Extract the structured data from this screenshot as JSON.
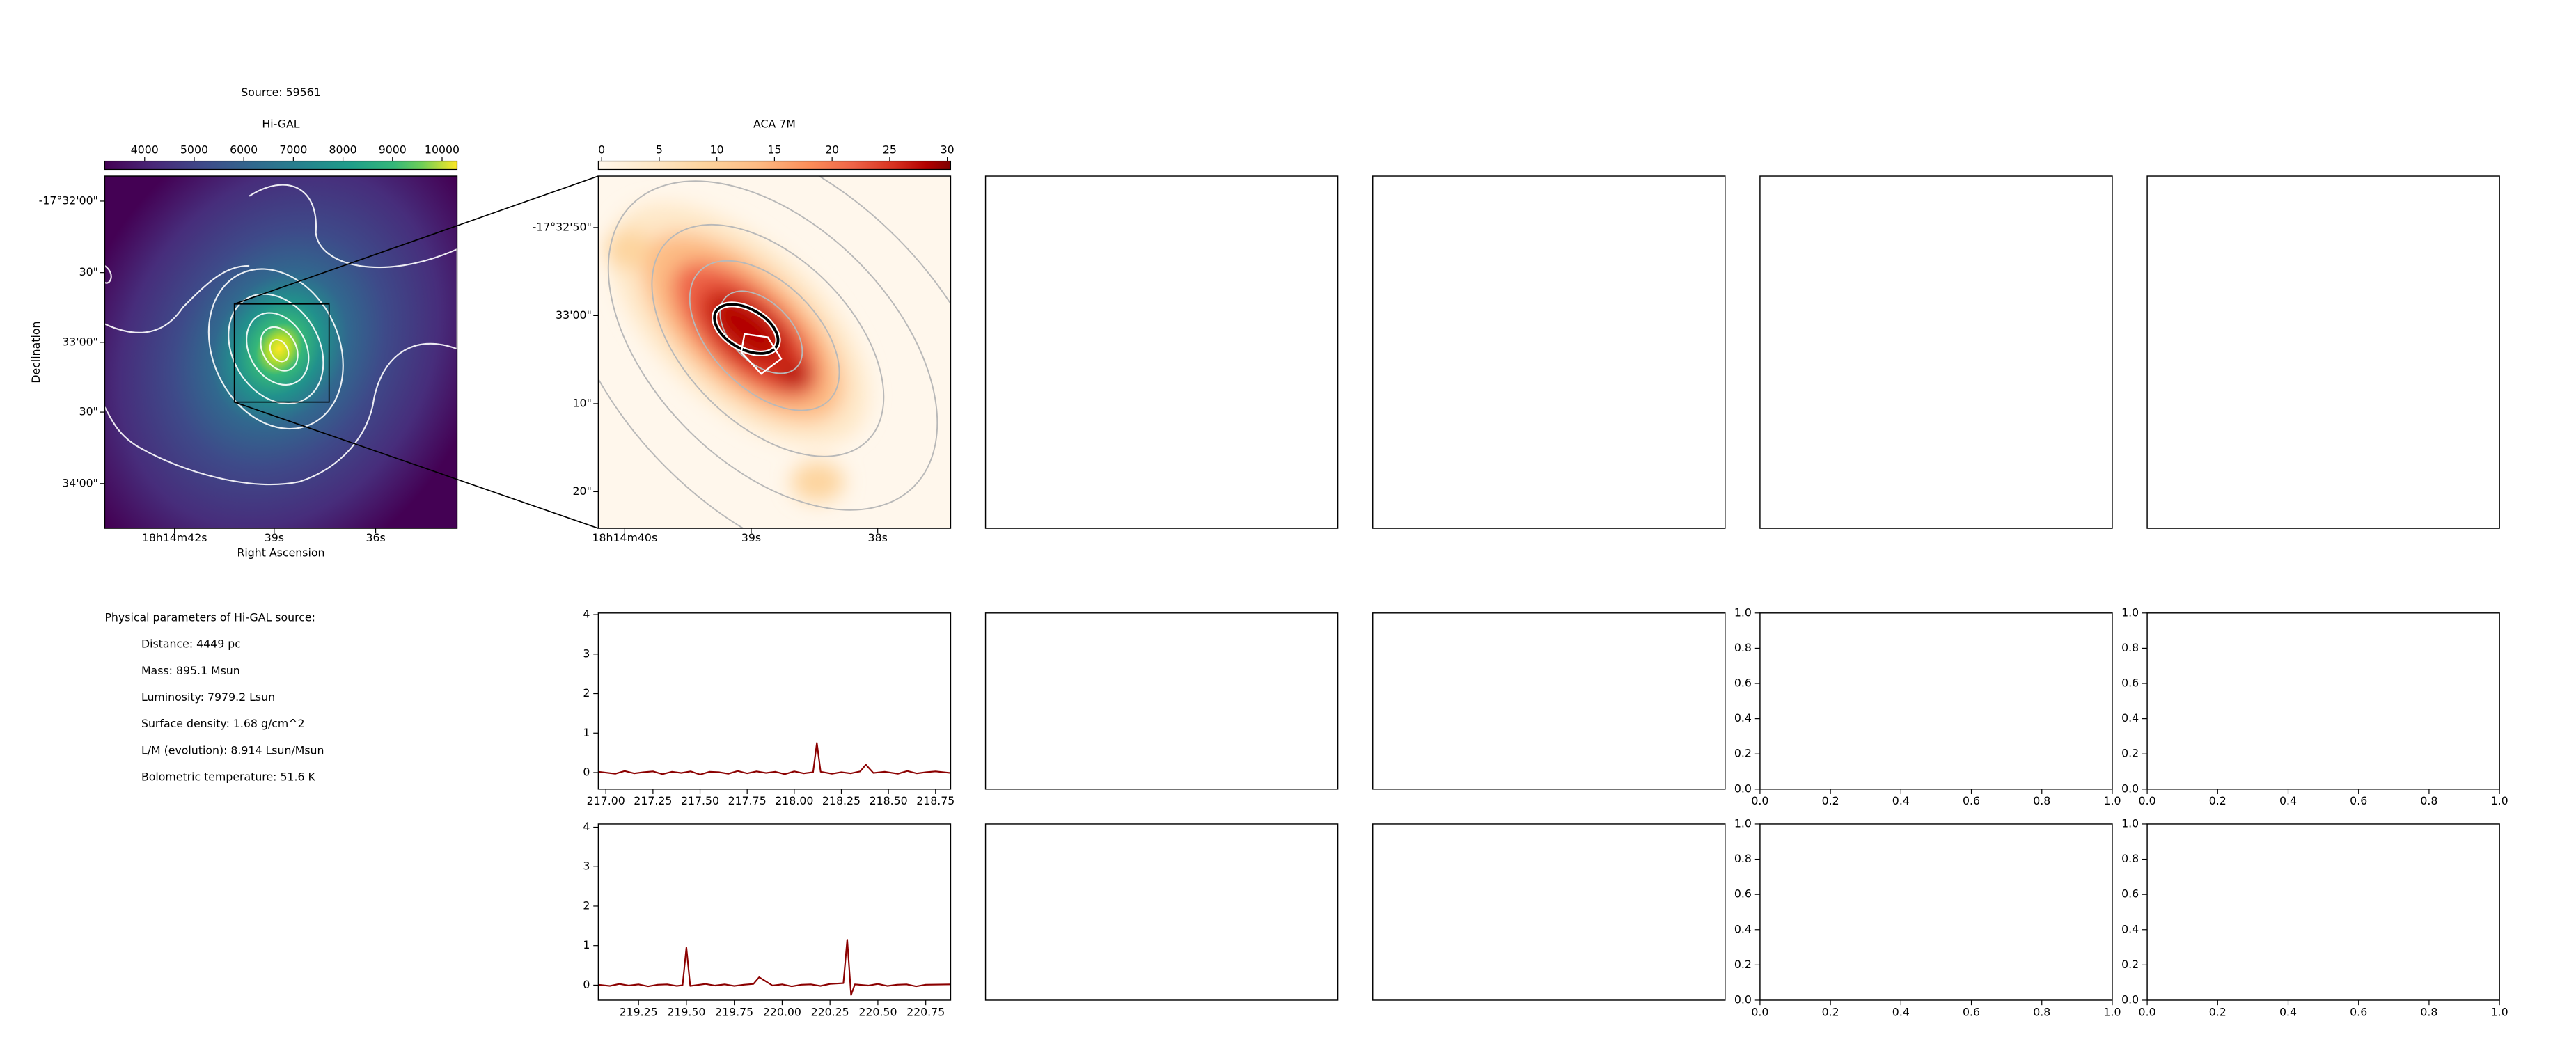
{
  "title": "Source: 59561",
  "images": [
    {
      "title": "Hi-GAL",
      "colorbar": {
        "lim": [
          3195,
          10302
        ],
        "ticks": [
          4000,
          5000,
          6000,
          7000,
          8000,
          9000,
          10000
        ]
      },
      "ra_ticks": [
        "18h14m42s",
        "39s",
        "36s"
      ],
      "dec_ticks": [
        "-17°32'00\"",
        "30\"",
        "33'00\"",
        "30\"",
        "34'00\""
      ],
      "xlabel": "Right Ascension",
      "ylabel": "Declination"
    },
    {
      "title": "ACA 7M",
      "colorbar": {
        "lim": [
          -0.29,
          30.29
        ],
        "ticks": [
          0,
          5,
          10,
          15,
          20,
          25,
          30
        ]
      },
      "ra_ticks": [
        "18h14m40s",
        "39s",
        "38s"
      ],
      "dec_ticks": [
        "-17°32'50\"",
        "33'00\"",
        "10\"",
        "20\""
      ]
    }
  ],
  "parameters": {
    "heading": "Physical parameters of Hi-GAL source:",
    "lines": [
      "Distance: 4449 pc",
      "Mass: 895.1 Msun",
      "Luminosity: 7979.2 Lsun",
      "Surface density: 1.68 g/cm^2",
      "L/M (evolution): 8.914 Lsun/Msun",
      "Bolometric temperature: 51.6 K"
    ]
  },
  "chart_data": [
    {
      "type": "line",
      "color": "#8b0000",
      "x": [
        216.96,
        217.05,
        217.1,
        217.15,
        217.2,
        217.25,
        217.3,
        217.35,
        217.4,
        217.45,
        217.5,
        217.55,
        217.6,
        217.65,
        217.7,
        217.75,
        217.8,
        217.85,
        217.9,
        217.95,
        218.0,
        218.05,
        218.1,
        218.12,
        218.14,
        218.2,
        218.25,
        218.3,
        218.35,
        218.38,
        218.42,
        218.48,
        218.55,
        218.6,
        218.65,
        218.7,
        218.75,
        218.83
      ],
      "values": [
        0.02,
        -0.03,
        0.04,
        -0.02,
        0.01,
        0.03,
        -0.04,
        0.02,
        -0.01,
        0.03,
        -0.05,
        0.02,
        0.01,
        -0.03,
        0.04,
        -0.02,
        0.03,
        -0.01,
        0.02,
        -0.04,
        0.03,
        -0.02,
        0.01,
        0.75,
        0.02,
        -0.03,
        0.01,
        -0.02,
        0.03,
        0.2,
        -0.01,
        0.02,
        -0.03,
        0.04,
        -0.02,
        0.01,
        0.03,
        -0.01
      ],
      "xlim": [
        216.96,
        218.83
      ],
      "ylim": [
        -0.42,
        4.04
      ],
      "xticks": [
        {
          "value": 217,
          "label": "217.00"
        },
        217.25,
        {
          "value": 217.5,
          "label": "217.50"
        },
        217.75,
        {
          "value": 218,
          "label": "218.00"
        },
        218.25,
        {
          "value": 218.5,
          "label": "218.50"
        },
        218.75
      ],
      "yticks": [
        0,
        1,
        2,
        3,
        4
      ]
    },
    {
      "type": "line",
      "color": "#8b0000",
      "x": [
        219.04,
        219.1,
        219.15,
        219.2,
        219.25,
        219.3,
        219.35,
        219.4,
        219.45,
        219.48,
        219.5,
        219.52,
        219.6,
        219.65,
        219.7,
        219.75,
        219.8,
        219.85,
        219.88,
        219.95,
        220.0,
        220.05,
        220.1,
        220.15,
        220.2,
        220.25,
        220.32,
        220.34,
        220.36,
        220.38,
        220.45,
        220.5,
        220.55,
        220.6,
        220.65,
        220.7,
        220.75,
        220.88
      ],
      "values": [
        0.01,
        -0.02,
        0.03,
        -0.01,
        0.02,
        -0.03,
        0.01,
        0.02,
        -0.02,
        0.0,
        0.95,
        -0.02,
        0.03,
        -0.01,
        0.02,
        -0.02,
        0.01,
        0.03,
        0.2,
        -0.01,
        0.02,
        -0.03,
        0.01,
        0.02,
        -0.02,
        0.03,
        0.05,
        1.15,
        -0.25,
        0.02,
        -0.01,
        0.03,
        -0.02,
        0.01,
        0.02,
        -0.03,
        0.01,
        0.02
      ],
      "xlim": [
        219.04,
        220.88
      ],
      "ylim": [
        -0.38,
        4.08
      ],
      "xticks": [
        219.25,
        {
          "value": 219.5,
          "label": "219.50"
        },
        219.75,
        {
          "value": 220,
          "label": "220.00"
        },
        220.25,
        {
          "value": 220.5,
          "label": "220.50"
        },
        220.75
      ],
      "yticks": [
        0,
        1,
        2,
        3,
        4
      ]
    },
    {
      "type": "empty",
      "xlim": [
        0,
        1
      ],
      "ylim": [
        0,
        1
      ],
      "xticks": [
        {
          "value": 0,
          "label": "0.0"
        },
        0.2,
        0.4,
        0.6,
        0.8,
        {
          "value": 1,
          "label": "1.0"
        }
      ],
      "yticks": [
        {
          "value": 0,
          "label": "0.0"
        },
        0.2,
        0.4,
        0.6,
        0.8,
        {
          "value": 1,
          "label": "1.0"
        }
      ]
    },
    {
      "type": "empty",
      "xlim": [
        0,
        1
      ],
      "ylim": [
        0,
        1
      ],
      "xticks": [
        {
          "value": 0,
          "label": "0.0"
        },
        0.2,
        0.4,
        0.6,
        0.8,
        {
          "value": 1,
          "label": "1.0"
        }
      ],
      "yticks": [
        {
          "value": 0,
          "label": "0.0"
        },
        0.2,
        0.4,
        0.6,
        0.8,
        {
          "value": 1,
          "label": "1.0"
        }
      ]
    },
    {
      "type": "empty",
      "xlim": [
        0,
        1
      ],
      "ylim": [
        0,
        1
      ],
      "xticks": [
        {
          "value": 0,
          "label": "0.0"
        },
        0.2,
        0.4,
        0.6,
        0.8,
        {
          "value": 1,
          "label": "1.0"
        }
      ],
      "yticks": [
        {
          "value": 0,
          "label": "0.0"
        },
        0.2,
        0.4,
        0.6,
        0.8,
        {
          "value": 1,
          "label": "1.0"
        }
      ]
    },
    {
      "type": "empty",
      "xlim": [
        0,
        1
      ],
      "ylim": [
        0,
        1
      ],
      "xticks": [
        {
          "value": 0,
          "label": "0.0"
        },
        0.2,
        0.4,
        0.6,
        0.8,
        {
          "value": 1,
          "label": "1.0"
        }
      ],
      "yticks": [
        {
          "value": 0,
          "label": "0.0"
        },
        0.2,
        0.4,
        0.6,
        0.8,
        {
          "value": 1,
          "label": "1.0"
        }
      ]
    }
  ]
}
